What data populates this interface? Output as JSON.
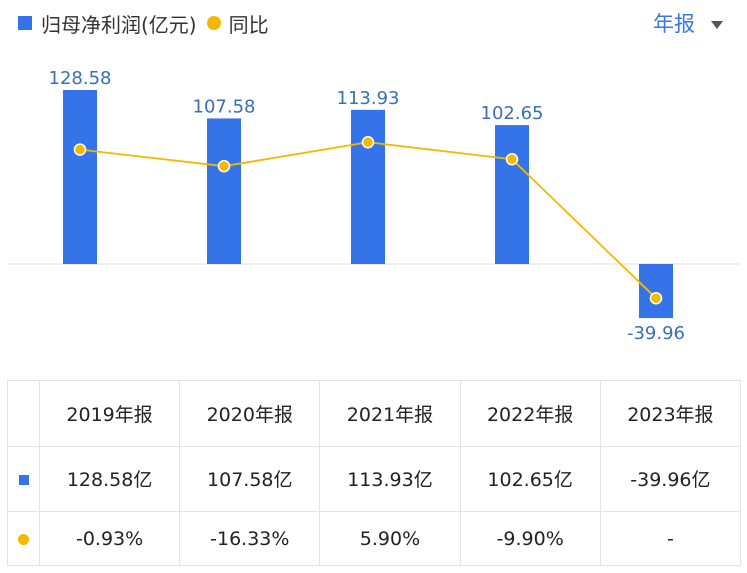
{
  "legend": {
    "bar_label": "归母净利润(亿元)",
    "line_label": "同比"
  },
  "period_selector": "年报",
  "table": {
    "headers": [
      "2019年报",
      "2020年报",
      "2021年报",
      "2022年报",
      "2023年报"
    ],
    "profit": [
      "128.58亿",
      "107.58亿",
      "113.93亿",
      "102.65亿",
      "-39.96亿"
    ],
    "yoy": [
      {
        "text": "-0.93%",
        "tone": "neg"
      },
      {
        "text": "-16.33%",
        "tone": "neg"
      },
      {
        "text": "5.90%",
        "tone": "pos"
      },
      {
        "text": "-9.90%",
        "tone": "neg"
      },
      {
        "text": "-",
        "tone": "neg"
      }
    ]
  },
  "chart_data": {
    "type": "bar",
    "categories": [
      "2019年报",
      "2020年报",
      "2021年报",
      "2022年报",
      "2023年报"
    ],
    "series": [
      {
        "name": "归母净利润(亿元)",
        "type": "bar",
        "values": [
          128.58,
          107.58,
          113.93,
          102.65,
          -39.96
        ],
        "labels": [
          "128.58",
          "107.58",
          "113.93",
          "102.65",
          "-39.96"
        ]
      },
      {
        "name": "同比",
        "type": "line",
        "values": [
          -0.93,
          -16.33,
          5.9,
          -9.9,
          -138.93
        ]
      }
    ],
    "colors": {
      "bar": "#3574e8",
      "line": "#f5b800",
      "bar_label": "#3a6fb5"
    },
    "grid": false,
    "legend_position": "top-left"
  }
}
